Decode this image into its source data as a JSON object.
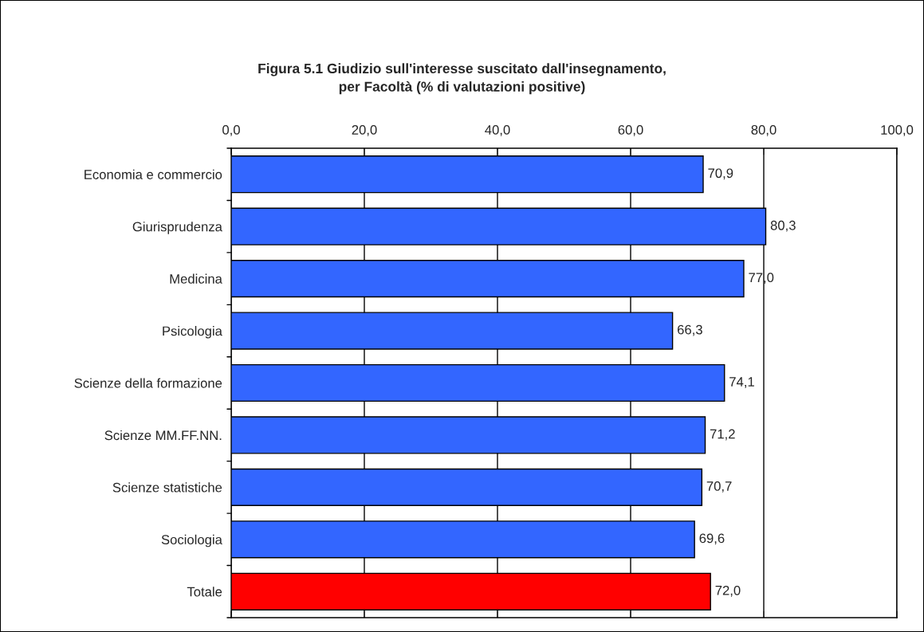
{
  "chart_data": {
    "type": "bar",
    "orientation": "horizontal",
    "title": "Figura 5.1 Giudizio sull'interesse suscitato dall'insegnamento,\nper Facoltà (% di valutazioni positive)",
    "categories": [
      "Economia e commercio",
      "Giurisprudenza",
      "Medicina",
      "Psicologia",
      "Scienze della formazione",
      "Scienze MM.FF.NN.",
      "Scienze statistiche",
      "Sociologia",
      "Totale"
    ],
    "values": [
      70.9,
      80.3,
      77.0,
      66.3,
      74.1,
      71.2,
      70.7,
      69.6,
      72.0
    ],
    "colors": [
      "#3366ff",
      "#3366ff",
      "#3366ff",
      "#3366ff",
      "#3366ff",
      "#3366ff",
      "#3366ff",
      "#3366ff",
      "#ff0000"
    ],
    "value_labels": [
      "70,9",
      "80,3",
      "77,0",
      "66,3",
      "74,1",
      "71,2",
      "70,7",
      "69,6",
      "72,0"
    ],
    "xlim": [
      0,
      100
    ],
    "xticks": [
      {
        "value": 0,
        "label": "0,0"
      },
      {
        "value": 20,
        "label": "20,0"
      },
      {
        "value": 40,
        "label": "40,0"
      },
      {
        "value": 60,
        "label": "60,0"
      },
      {
        "value": 80,
        "label": "80,0"
      },
      {
        "value": 100,
        "label": "100,0"
      }
    ],
    "grid": "x"
  }
}
